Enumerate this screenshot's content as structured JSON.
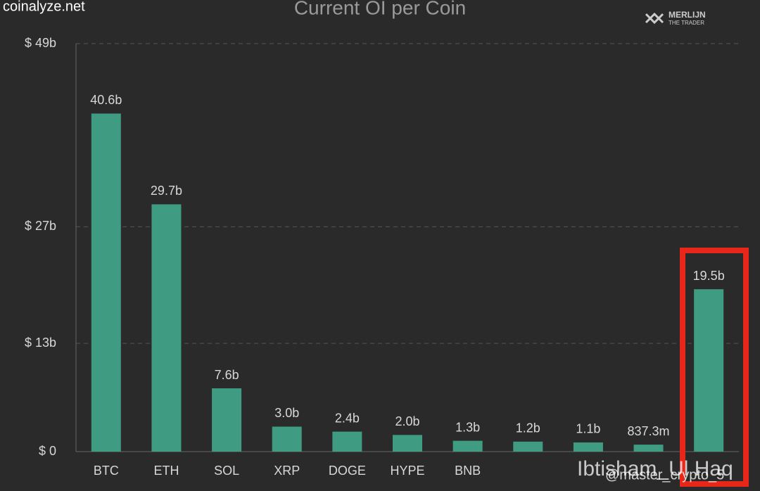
{
  "chart_data": {
    "type": "bar",
    "title": "Current OI per Coin",
    "source": "coinalyze.net",
    "logo": [
      "MERLIJN",
      "THE TRADER"
    ],
    "watermarks": [
      "Ibtisham_Ul Haq",
      "@master_crypto_5"
    ],
    "categories": [
      "BTC",
      "ETH",
      "SOL",
      "XRP",
      "DOGE",
      "HYPE",
      "BNB",
      null,
      null,
      null,
      null
    ],
    "values": [
      40.6,
      29.7,
      7.6,
      3.0,
      2.4,
      2.0,
      1.3,
      1.2,
      1.1,
      0.8373,
      19.5
    ],
    "value_labels": [
      "40.6b",
      "29.7b",
      "7.6b",
      "3.0b",
      "2.4b",
      "2.0b",
      "1.3b",
      "1.2b",
      "1.1b",
      "837.3m",
      "19.5b"
    ],
    "color": "#3f9c82",
    "ylim": [
      0,
      49
    ],
    "yticks": [
      {
        "value": 0,
        "label": "$ 0"
      },
      {
        "value": 13,
        "label": "$ 13b"
      },
      {
        "value": 27,
        "label": "$ 27b"
      },
      {
        "value": 49,
        "label": "$ 49b"
      }
    ],
    "grid": true
  }
}
